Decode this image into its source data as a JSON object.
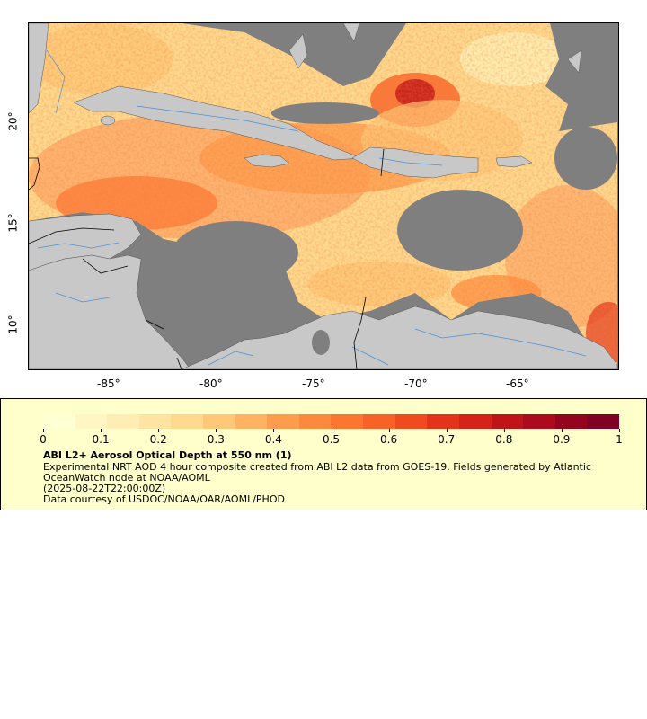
{
  "map": {
    "x_ticks": [
      "-85°",
      "-80°",
      "-75°",
      "-70°",
      "-65°"
    ],
    "y_ticks": [
      "20°",
      "15°",
      "10°"
    ],
    "land_color": "#c8c8c8",
    "ocean_nodata_color": "#7f7f7f",
    "border_color": "#000000",
    "river_color": "#4a8fd4"
  },
  "legend": {
    "colorbar_ticks": [
      "0",
      "0.1",
      "0.2",
      "0.3",
      "0.4",
      "0.5",
      "0.6",
      "0.7",
      "0.8",
      "0.9",
      "1"
    ],
    "colorbar_colors": [
      "#ffffd4",
      "#fff6c4",
      "#ffedb3",
      "#fee4a0",
      "#fed98e",
      "#fec878",
      "#feb262",
      "#fd9c4d",
      "#fd8a3c",
      "#fc7630",
      "#f96226",
      "#f04a1f",
      "#e3341b",
      "#d42318",
      "#c01518",
      "#ab0b1c",
      "#95041f",
      "#800026"
    ],
    "title": "ABI L2+ Aerosol Optical Depth at 550 nm (1)",
    "description": "Experimental NRT AOD 4 hour composite created from ABI L2 data from GOES-19. Fields generated by Atlantic OceanWatch node at NOAA/AOML",
    "timestamp": "(2025-08-22T22:00:00Z)",
    "credit": "Data courtesy of USDOC/NOAA/OAR/AOML/PHOD"
  }
}
